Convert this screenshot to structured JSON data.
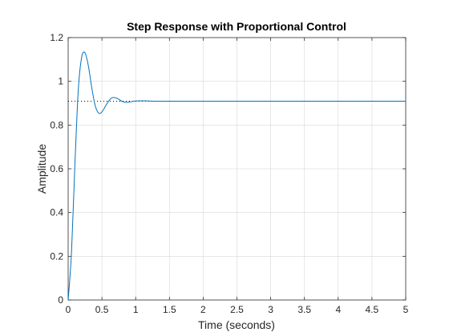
{
  "chart_data": {
    "type": "line",
    "title": "Step Response with Proportional Control",
    "xlabel": "Time (seconds)",
    "ylabel": "Amplitude",
    "xlim": [
      0,
      5
    ],
    "ylim": [
      0,
      1.2
    ],
    "xticks": [
      0,
      0.5,
      1,
      1.5,
      2,
      2.5,
      3,
      3.5,
      4,
      4.5,
      5
    ],
    "xtick_labels": [
      "0",
      "0.5",
      "1",
      "1.5",
      "2",
      "2.5",
      "3",
      "3.5",
      "4",
      "4.5",
      "5"
    ],
    "yticks": [
      0,
      0.2,
      0.4,
      0.6,
      0.8,
      1,
      1.2
    ],
    "ytick_labels": [
      "0",
      "0.2",
      "0.4",
      "0.6",
      "0.8",
      "1",
      "1.2"
    ],
    "grid": true,
    "series": [
      {
        "x": [
          0,
          0.05,
          0.1,
          0.15,
          0.2,
          0.25,
          0.3,
          0.35,
          0.4,
          0.45,
          0.5,
          0.55,
          0.6,
          0.65,
          0.7,
          0.75,
          0.8,
          0.85,
          0.9,
          0.95,
          1.0,
          1.1,
          1.2,
          1.3,
          1.5,
          2,
          2.5,
          3,
          3.5,
          4,
          4.5,
          5
        ],
        "y": [
          0,
          0.22,
          0.62,
          0.96,
          1.11,
          1.13,
          1.07,
          0.97,
          0.89,
          0.855,
          0.86,
          0.885,
          0.91,
          0.925,
          0.925,
          0.918,
          0.908,
          0.904,
          0.905,
          0.908,
          0.91,
          0.911,
          0.91,
          0.909,
          0.909,
          0.909,
          0.909,
          0.909,
          0.909,
          0.909,
          0.909,
          0.909
        ],
        "color": "#0072bd"
      }
    ],
    "steady_state": {
      "value": 0.909,
      "x_end": 1.45,
      "style": "dotted",
      "color": "#000000"
    }
  }
}
